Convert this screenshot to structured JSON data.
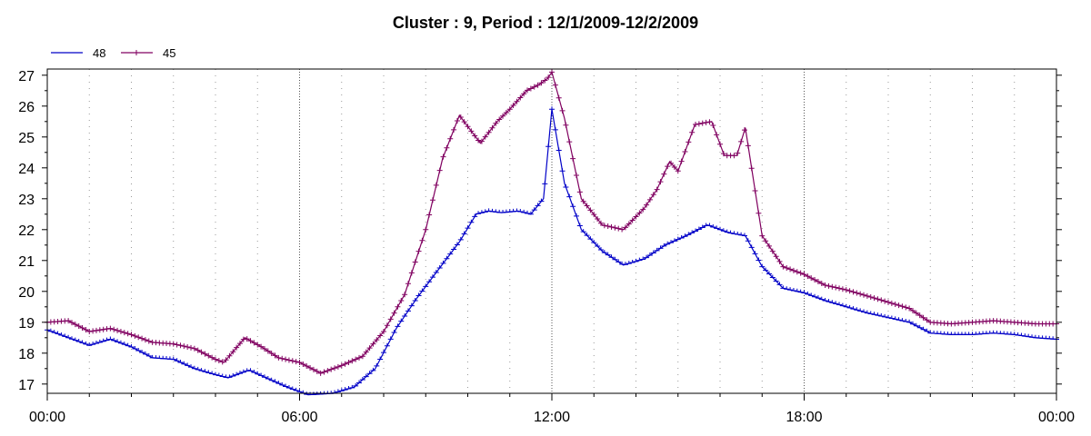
{
  "chart_data": {
    "type": "line",
    "title": "Cluster : 9, Period : 12/1/2009-12/2/2009",
    "xlabel": "",
    "ylabel": "",
    "x_ticks": [
      "00:00",
      "06:00",
      "12:00",
      "18:00",
      "00:00"
    ],
    "y_ticks": [
      17,
      18,
      19,
      20,
      21,
      22,
      23,
      24,
      25,
      26,
      27
    ],
    "xlim_hours": [
      0,
      24
    ],
    "ylim": [
      16.7,
      27.2
    ],
    "grid": true,
    "legend_position": "top-left",
    "series": [
      {
        "name": "48",
        "color": "#0000c8",
        "marker": "tick",
        "points": [
          [
            0.0,
            18.75
          ],
          [
            0.5,
            18.5
          ],
          [
            1.0,
            18.25
          ],
          [
            1.5,
            18.45
          ],
          [
            2.0,
            18.2
          ],
          [
            2.5,
            17.85
          ],
          [
            3.0,
            17.8
          ],
          [
            3.5,
            17.5
          ],
          [
            4.0,
            17.3
          ],
          [
            4.3,
            17.2
          ],
          [
            4.8,
            17.45
          ],
          [
            5.2,
            17.2
          ],
          [
            5.7,
            16.9
          ],
          [
            6.2,
            16.65
          ],
          [
            6.8,
            16.7
          ],
          [
            7.3,
            16.9
          ],
          [
            7.8,
            17.5
          ],
          [
            8.3,
            18.8
          ],
          [
            8.8,
            19.8
          ],
          [
            9.3,
            20.7
          ],
          [
            9.8,
            21.6
          ],
          [
            10.2,
            22.5
          ],
          [
            10.5,
            22.6
          ],
          [
            10.8,
            22.55
          ],
          [
            11.2,
            22.6
          ],
          [
            11.5,
            22.5
          ],
          [
            11.8,
            23.0
          ],
          [
            12.0,
            25.9
          ],
          [
            12.3,
            23.5
          ],
          [
            12.7,
            22.0
          ],
          [
            13.2,
            21.3
          ],
          [
            13.7,
            20.85
          ],
          [
            14.2,
            21.05
          ],
          [
            14.7,
            21.5
          ],
          [
            15.2,
            21.8
          ],
          [
            15.7,
            22.15
          ],
          [
            16.2,
            21.9
          ],
          [
            16.6,
            21.8
          ],
          [
            17.0,
            20.8
          ],
          [
            17.5,
            20.1
          ],
          [
            18.0,
            19.95
          ],
          [
            18.5,
            19.7
          ],
          [
            19.0,
            19.5
          ],
          [
            19.5,
            19.3
          ],
          [
            20.0,
            19.15
          ],
          [
            20.5,
            19.0
          ],
          [
            21.0,
            18.65
          ],
          [
            21.5,
            18.6
          ],
          [
            22.0,
            18.6
          ],
          [
            22.5,
            18.65
          ],
          [
            23.0,
            18.6
          ],
          [
            23.5,
            18.5
          ],
          [
            24.0,
            18.45
          ]
        ]
      },
      {
        "name": "45",
        "color": "#800060",
        "marker": "cross",
        "points": [
          [
            0.0,
            19.0
          ],
          [
            0.5,
            19.05
          ],
          [
            1.0,
            18.7
          ],
          [
            1.5,
            18.8
          ],
          [
            2.0,
            18.6
          ],
          [
            2.5,
            18.35
          ],
          [
            3.0,
            18.3
          ],
          [
            3.5,
            18.15
          ],
          [
            4.0,
            17.8
          ],
          [
            4.2,
            17.7
          ],
          [
            4.7,
            18.5
          ],
          [
            5.1,
            18.2
          ],
          [
            5.5,
            17.85
          ],
          [
            6.0,
            17.7
          ],
          [
            6.5,
            17.35
          ],
          [
            7.0,
            17.6
          ],
          [
            7.5,
            17.9
          ],
          [
            8.0,
            18.7
          ],
          [
            8.5,
            19.9
          ],
          [
            9.0,
            22.0
          ],
          [
            9.4,
            24.3
          ],
          [
            9.8,
            25.7
          ],
          [
            10.3,
            24.8
          ],
          [
            10.7,
            25.5
          ],
          [
            11.0,
            25.9
          ],
          [
            11.4,
            26.5
          ],
          [
            11.7,
            26.7
          ],
          [
            11.9,
            26.9
          ],
          [
            12.0,
            27.1
          ],
          [
            12.3,
            25.6
          ],
          [
            12.7,
            23.0
          ],
          [
            13.2,
            22.15
          ],
          [
            13.7,
            22.0
          ],
          [
            14.2,
            22.7
          ],
          [
            14.5,
            23.3
          ],
          [
            14.8,
            24.2
          ],
          [
            15.0,
            23.9
          ],
          [
            15.4,
            25.4
          ],
          [
            15.8,
            25.5
          ],
          [
            16.1,
            24.4
          ],
          [
            16.4,
            24.4
          ],
          [
            16.6,
            25.3
          ],
          [
            17.0,
            21.8
          ],
          [
            17.5,
            20.8
          ],
          [
            18.0,
            20.55
          ],
          [
            18.5,
            20.2
          ],
          [
            19.0,
            20.05
          ],
          [
            19.5,
            19.85
          ],
          [
            20.0,
            19.65
          ],
          [
            20.5,
            19.45
          ],
          [
            21.0,
            19.0
          ],
          [
            21.5,
            18.95
          ],
          [
            22.0,
            19.0
          ],
          [
            22.5,
            19.05
          ],
          [
            23.0,
            19.0
          ],
          [
            23.5,
            18.95
          ],
          [
            24.0,
            18.95
          ]
        ]
      }
    ]
  }
}
